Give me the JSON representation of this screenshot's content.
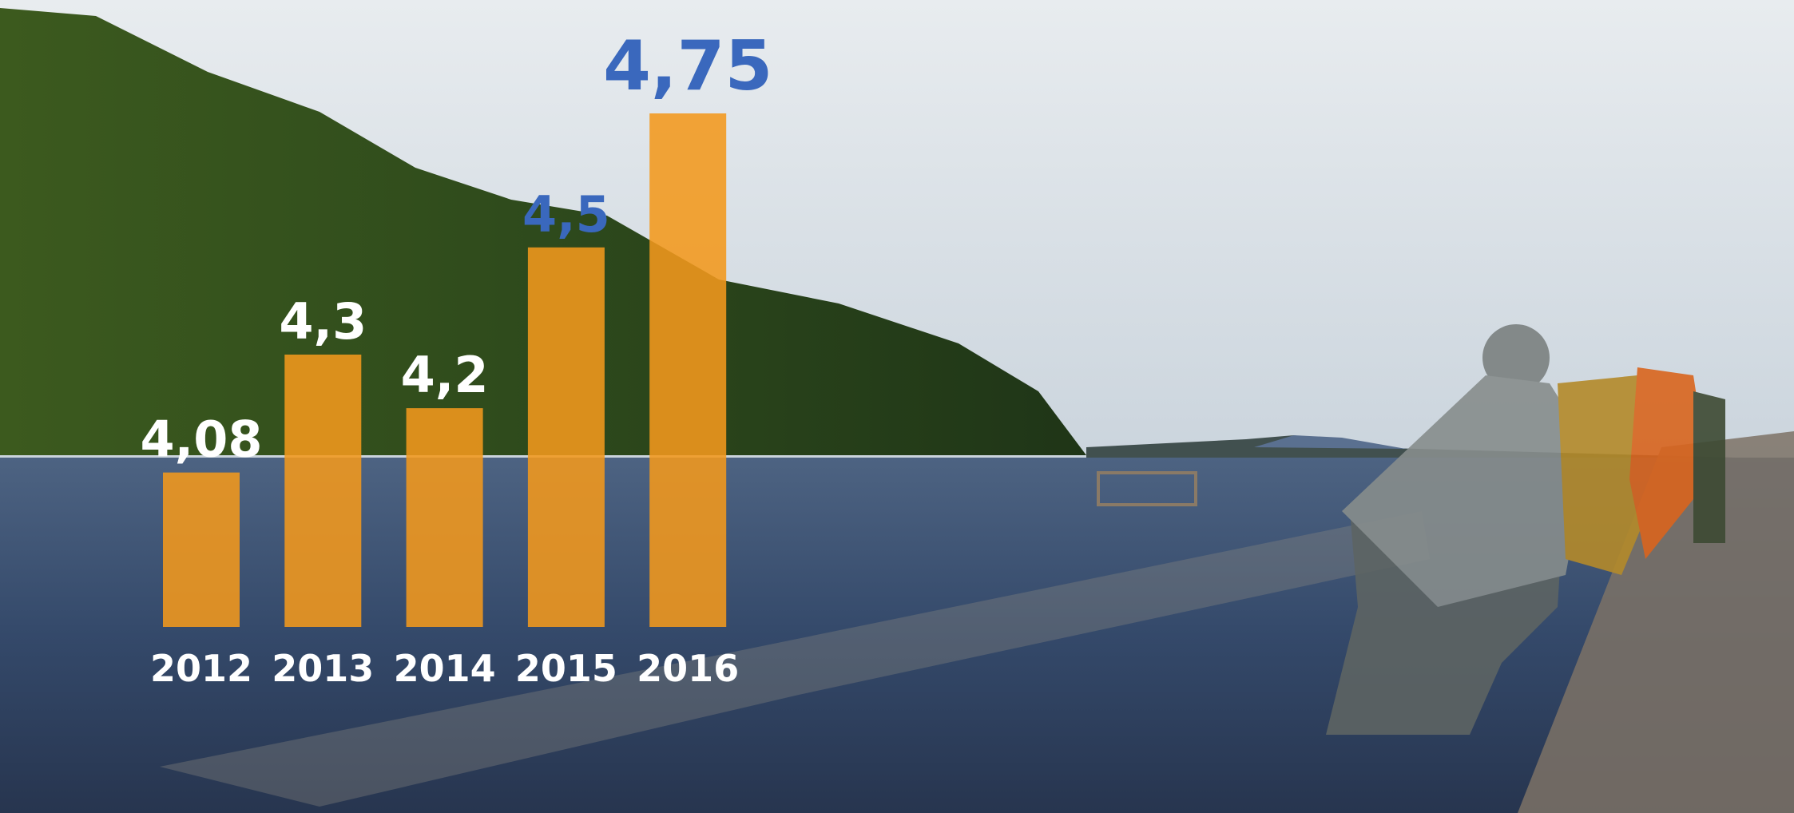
{
  "chart_data": {
    "type": "bar",
    "categories": [
      "2012",
      "2013",
      "2014",
      "2015",
      "2016"
    ],
    "values": [
      4.08,
      4.3,
      4.2,
      4.5,
      4.75
    ],
    "value_labels": [
      "4,08",
      "4,3",
      "4,2",
      "4,5",
      "4,75"
    ],
    "value_label_colors": [
      "#ffffff",
      "#ffffff",
      "#ffffff",
      "#3a68bd",
      "#3a68bd"
    ],
    "color": "#f3981c"
  }
}
